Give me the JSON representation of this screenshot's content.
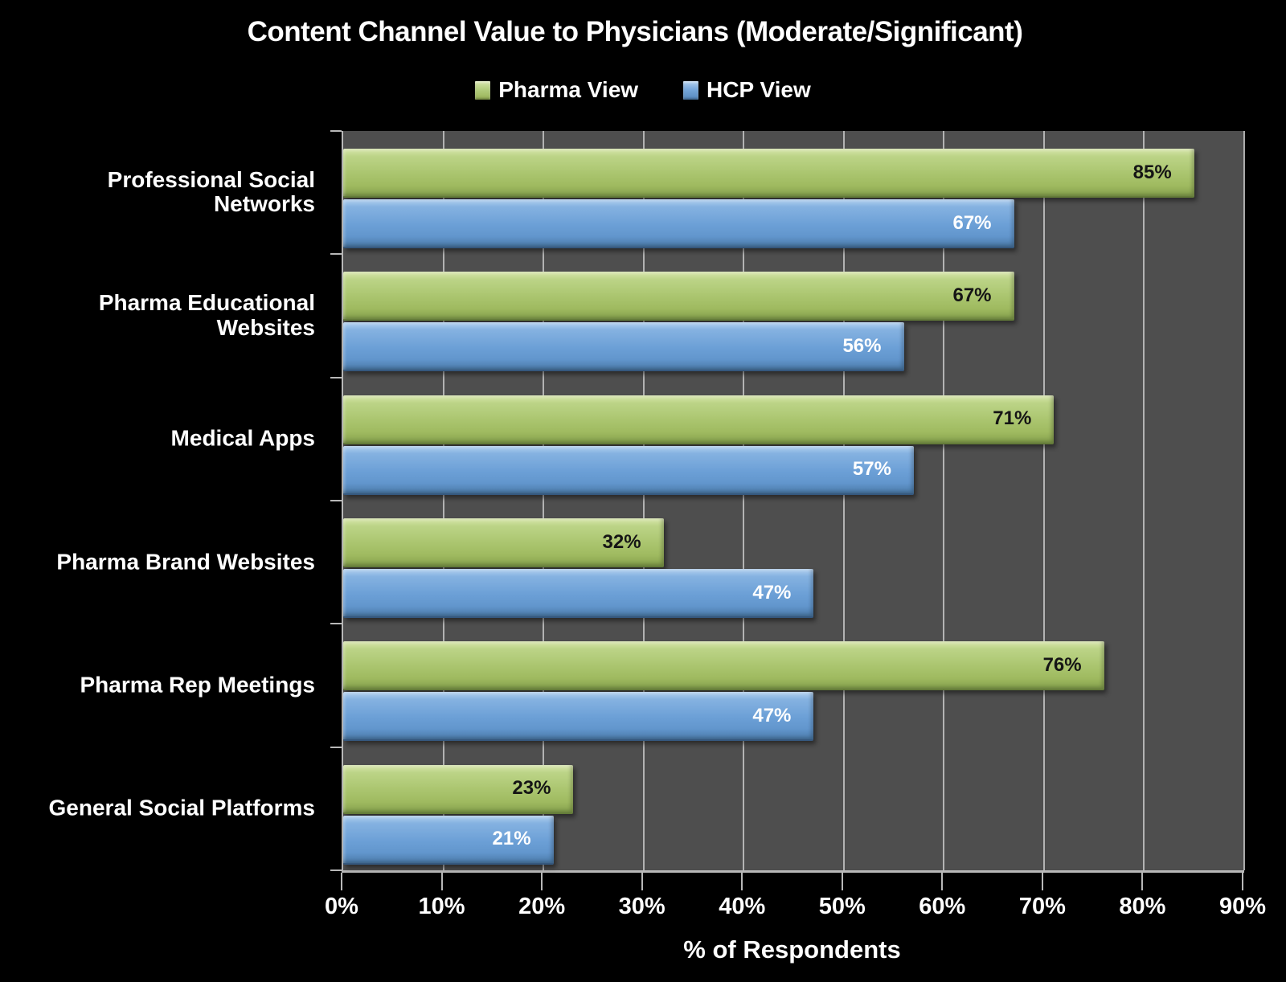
{
  "colors": {
    "background": "#000000",
    "plot_background": "#4e4e4e",
    "gridline": "#c6c6c6",
    "axis": "#b8b8b8",
    "pharma_green": "#a9c46d",
    "hcp_blue": "#6b9fd6",
    "text": "#ffffff"
  },
  "chart_data": {
    "type": "bar",
    "orientation": "horizontal",
    "title": "Content Channel Value to Physicians (Moderate/Significant)",
    "xlabel": "% of Respondents",
    "ylabel": "",
    "xlim": [
      0,
      90
    ],
    "grid": true,
    "legend_position": "top",
    "value_suffix": "%",
    "categories": [
      "Professional Social Networks",
      "Pharma Educational Websites",
      "Medical Apps",
      "Pharma Brand Websites",
      "Pharma Rep Meetings",
      "General Social Platforms"
    ],
    "series": [
      {
        "name": "Pharma View",
        "color": "#a9c46d",
        "values": [
          85,
          67,
          71,
          32,
          76,
          23
        ]
      },
      {
        "name": "HCP View",
        "color": "#6b9fd6",
        "values": [
          67,
          56,
          57,
          47,
          47,
          21
        ]
      }
    ],
    "x_ticks": [
      "0%",
      "10%",
      "20%",
      "30%",
      "40%",
      "50%",
      "60%",
      "70%",
      "80%",
      "90%"
    ],
    "data_labels": {
      "Pharma View": [
        "85%",
        "67%",
        "71%",
        "32%",
        "76%",
        "23%"
      ],
      "HCP View": [
        "67%",
        "56%",
        "57%",
        "47%",
        "47%",
        "21%"
      ]
    }
  }
}
